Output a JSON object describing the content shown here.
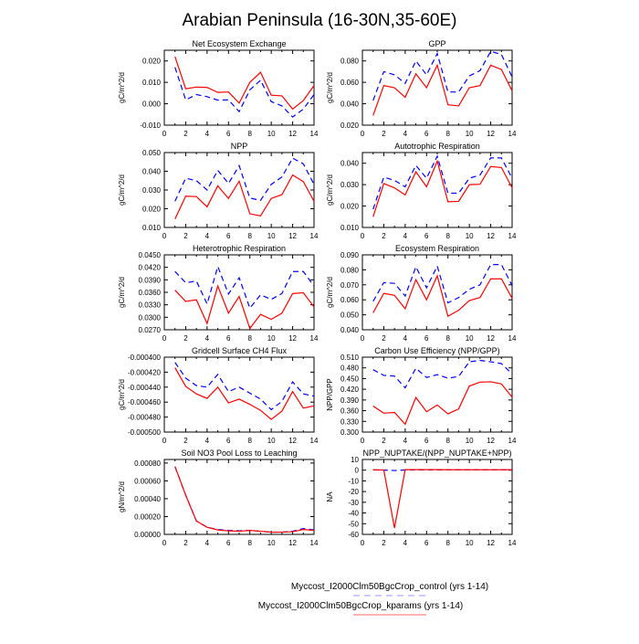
{
  "chart_data": {
    "type": "line",
    "title": "Arabian Peninsula (16-30N,35-60E)",
    "x": [
      1,
      2,
      3,
      4,
      5,
      6,
      7,
      8,
      9,
      10,
      11,
      12,
      13,
      14
    ],
    "xlim": [
      0,
      14
    ],
    "xticks": [
      "0",
      "2",
      "4",
      "6",
      "8",
      "10",
      "12",
      "14"
    ],
    "legend": {
      "placement": "bottom-center",
      "entries": [
        {
          "name": "Myccost_I2000Clm50BgcCrop_control (yrs 1-14)",
          "color": "#0000ff",
          "style": "dashed"
        },
        {
          "name": "Myccost_I2000Clm50BgcCrop_kparams (yrs 1-14)",
          "color": "#ff0000",
          "style": "solid"
        }
      ]
    },
    "panels": [
      {
        "title": "Net Ecosystem Exchange",
        "ylabel": "gC/m^2/d",
        "ylim": [
          -0.01,
          0.025
        ],
        "yticks": [
          [
            "0.020",
            0.02
          ],
          [
            "0.010",
            0.01
          ],
          [
            "0.000",
            0
          ],
          [
            "-0.010",
            -0.01
          ]
        ],
        "series": [
          {
            "name": "control",
            "values": [
              0.017,
              0.0018,
              0.0043,
              0.0033,
              0.0017,
              0.0018,
              -0.0037,
              0.0065,
              0.011,
              0.001,
              -0.001,
              -0.0062,
              -0.0025,
              0.0043
            ]
          },
          {
            "name": "kparams",
            "values": [
              0.022,
              0.007,
              0.0078,
              0.0076,
              0.0053,
              0.0055,
              0.0003,
              0.01,
              0.0147,
              0.004,
              0.0037,
              -0.0025,
              0.0015,
              0.0085
            ]
          }
        ]
      },
      {
        "title": "GPP",
        "ylabel": "gC/m^2/d",
        "ylim": [
          0.02,
          0.09
        ],
        "yticks": [
          [
            "0.080",
            0.08
          ],
          [
            "0.060",
            0.06
          ],
          [
            "0.040",
            0.04
          ],
          [
            "0.020",
            0.02
          ]
        ],
        "series": [
          {
            "name": "control",
            "values": [
              0.043,
              0.07,
              0.067,
              0.059,
              0.08,
              0.067,
              0.087,
              0.051,
              0.051,
              0.066,
              0.071,
              0.089,
              0.086,
              0.065
            ]
          },
          {
            "name": "kparams",
            "values": [
              0.029,
              0.057,
              0.055,
              0.046,
              0.068,
              0.055,
              0.076,
              0.039,
              0.038,
              0.055,
              0.057,
              0.076,
              0.072,
              0.052
            ]
          }
        ]
      },
      {
        "title": "NPP",
        "ylabel": "gC/m^2/d",
        "ylim": [
          0.01,
          0.05
        ],
        "yticks": [
          [
            "0.050",
            0.05
          ],
          [
            "0.040",
            0.04
          ],
          [
            "0.030",
            0.03
          ],
          [
            "0.020",
            0.02
          ],
          [
            "0.010",
            0.01
          ]
        ],
        "series": [
          {
            "name": "control",
            "values": [
              0.024,
              0.0363,
              0.035,
              0.03,
              0.0405,
              0.0335,
              0.043,
              0.0257,
              0.0245,
              0.033,
              0.037,
              0.047,
              0.044,
              0.033
            ]
          },
          {
            "name": "kparams",
            "values": [
              0.0145,
              0.0267,
              0.0265,
              0.021,
              0.0322,
              0.0255,
              0.0347,
              0.0173,
              0.0162,
              0.0255,
              0.0275,
              0.038,
              0.0345,
              0.024
            ]
          }
        ]
      },
      {
        "title": "Autotrophic Respiration",
        "ylabel": "gC/m^2/d",
        "ylim": [
          0.01,
          0.045
        ],
        "yticks": [
          [
            "0.040",
            0.04
          ],
          [
            "0.030",
            0.03
          ],
          [
            "0.020",
            0.02
          ],
          [
            "0.010",
            0.01
          ]
        ],
        "series": [
          {
            "name": "control",
            "values": [
              0.0185,
              0.0335,
              0.032,
              0.029,
              0.039,
              0.033,
              0.0433,
              0.026,
              0.026,
              0.033,
              0.0345,
              0.0425,
              0.0425,
              0.033
            ]
          },
          {
            "name": "kparams",
            "values": [
              0.015,
              0.0305,
              0.0285,
              0.0252,
              0.036,
              0.029,
              0.041,
              0.022,
              0.0222,
              0.03,
              0.0302,
              0.0385,
              0.038,
              0.0285
            ]
          }
        ]
      },
      {
        "title": "Heterotrophic Respiration",
        "ylabel": "gC/m^2/d",
        "ylim": [
          0.027,
          0.045
        ],
        "yticks": [
          [
            "0.0450",
            0.045
          ],
          [
            "0.0420",
            0.042
          ],
          [
            "0.0390",
            0.039
          ],
          [
            "0.0360",
            0.036
          ],
          [
            "0.0330",
            0.033
          ],
          [
            "0.0300",
            0.03
          ],
          [
            "0.0270",
            0.027
          ]
        ],
        "series": [
          {
            "name": "control",
            "values": [
              0.041,
              0.0383,
              0.0387,
              0.0332,
              0.0422,
              0.0356,
              0.0395,
              0.0322,
              0.0354,
              0.0343,
              0.0357,
              0.041,
              0.041,
              0.0375
            ]
          },
          {
            "name": "kparams",
            "values": [
              0.0365,
              0.0338,
              0.0342,
              0.0285,
              0.0375,
              0.031,
              0.035,
              0.0273,
              0.0307,
              0.0295,
              0.031,
              0.0357,
              0.0359,
              0.0325
            ]
          }
        ]
      },
      {
        "title": "Ecosystem Respiration",
        "ylabel": "gC/m^2/d",
        "ylim": [
          0.04,
          0.09
        ],
        "yticks": [
          [
            "0.090",
            0.09
          ],
          [
            "0.080",
            0.08
          ],
          [
            "0.070",
            0.07
          ],
          [
            "0.060",
            0.06
          ],
          [
            "0.050",
            0.05
          ],
          [
            "0.040",
            0.04
          ]
        ],
        "series": [
          {
            "name": "control",
            "values": [
              0.059,
              0.0715,
              0.071,
              0.0625,
              0.082,
              0.068,
              0.0825,
              0.058,
              0.0615,
              0.067,
              0.07,
              0.0835,
              0.0835,
              0.0695
            ]
          },
          {
            "name": "kparams",
            "values": [
              0.0513,
              0.0643,
              0.063,
              0.054,
              0.0735,
              0.06,
              0.076,
              0.049,
              0.053,
              0.0595,
              0.0615,
              0.074,
              0.074,
              0.061
            ]
          }
        ]
      },
      {
        "title": "Gridcell Surface CH4 Flux",
        "ylabel": "gC/m^2/d",
        "ylim": [
          -0.0005,
          -0.0004
        ],
        "yticks": [
          [
            "-0.000400",
            -0.0004
          ],
          [
            "-0.000420",
            -0.00042
          ],
          [
            "-0.000440",
            -0.00044
          ],
          [
            "-0.000460",
            -0.00046
          ],
          [
            "-0.000480",
            -0.00048
          ],
          [
            "-0.000500",
            -0.0005
          ]
        ],
        "series": [
          {
            "name": "control",
            "values": [
              -0.000407,
              -0.000428,
              -0.000438,
              -0.00044,
              -0.000423,
              -0.000446,
              -0.00044,
              -0.000448,
              -0.000456,
              -0.00047,
              -0.000459,
              -0.000433,
              -0.000449,
              -0.000452
            ]
          },
          {
            "name": "kparams",
            "values": [
              -0.000414,
              -0.000439,
              -0.000449,
              -0.000455,
              -0.00044,
              -0.000461,
              -0.000456,
              -0.000463,
              -0.000471,
              -0.000483,
              -0.000472,
              -0.000446,
              -0.000468,
              -0.000465
            ]
          }
        ]
      },
      {
        "title": "Carbon Use Efficiency (NPP/GPP)",
        "ylabel": "NPP/GPP",
        "ylim": [
          0.3,
          0.51
        ],
        "yticks": [
          [
            "0.510",
            0.51
          ],
          [
            "0.480",
            0.48
          ],
          [
            "0.450",
            0.45
          ],
          [
            "0.420",
            0.42
          ],
          [
            "0.390",
            0.39
          ],
          [
            "0.360",
            0.36
          ],
          [
            "0.330",
            0.33
          ],
          [
            "0.300",
            0.3
          ]
        ],
        "series": [
          {
            "name": "control",
            "values": [
              0.475,
              0.459,
              0.457,
              0.424,
              0.479,
              0.453,
              0.461,
              0.451,
              0.456,
              0.497,
              0.501,
              0.497,
              0.492,
              0.463
            ]
          },
          {
            "name": "kparams",
            "values": [
              0.373,
              0.353,
              0.355,
              0.322,
              0.397,
              0.357,
              0.376,
              0.351,
              0.365,
              0.429,
              0.44,
              0.441,
              0.435,
              0.398
            ]
          }
        ]
      },
      {
        "title": "Soil NO3 Pool Loss to Leaching",
        "ylabel": "gN/m^2/d",
        "ylim": [
          0,
          0.00084
        ],
        "yticks": [
          [
            "0.00080",
            0.0008
          ],
          [
            "0.00060",
            0.0006
          ],
          [
            "0.00040",
            0.0004
          ],
          [
            "0.00020",
            0.0002
          ],
          [
            "0.00000",
            0
          ]
        ],
        "series": [
          {
            "name": "control",
            "values": [
              0.00076,
              0.00044,
              0.00015,
              8e-05,
              5.5e-05,
              4.5e-05,
              4e-05,
              4.5e-05,
              3.5e-05,
              2.5e-05,
              2.5e-05,
              3.5e-05,
              6.5e-05,
              5e-05
            ]
          },
          {
            "name": "kparams",
            "values": [
              0.00076,
              0.00044,
              0.00015,
              8e-05,
              5e-05,
              4e-05,
              3.5e-05,
              4.5e-05,
              3.5e-05,
              2.5e-05,
              2.5e-05,
              3e-05,
              5.5e-05,
              4.5e-05
            ]
          }
        ]
      },
      {
        "title": "NPP_NUPTAKE/(NPP_NUPTAKE+NPP)",
        "ylabel": "NA",
        "ylim": [
          -60,
          10
        ],
        "yticks": [
          [
            "10",
            10
          ],
          [
            "0",
            0
          ],
          [
            "-10",
            -10
          ],
          [
            "-20",
            -20
          ],
          [
            "-30",
            -30
          ],
          [
            "-40",
            -40
          ],
          [
            "-50",
            -50
          ],
          [
            "-60",
            -60
          ]
        ],
        "series": [
          {
            "name": "control",
            "values": [
              0.3,
              0.1,
              -0.3,
              0.2,
              0.3,
              0.3,
              0.3,
              0.3,
              0.3,
              0.3,
              0.3,
              0.3,
              0.3,
              0.3
            ]
          },
          {
            "name": "kparams",
            "values": [
              0.3,
              0.2,
              -54,
              0.5,
              0.5,
              0.5,
              0.5,
              0.4,
              0.4,
              0.4,
              0.4,
              0.4,
              0.4,
              0.4
            ]
          }
        ]
      }
    ]
  }
}
